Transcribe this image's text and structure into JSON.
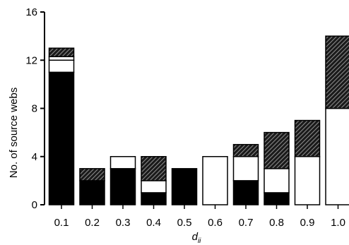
{
  "chart_data": {
    "type": "bar",
    "stacked": true,
    "categories": [
      "0.1",
      "0.2",
      "0.3",
      "0.4",
      "0.5",
      "0.6",
      "0.7",
      "0.8",
      "0.9",
      "1.0"
    ],
    "series": [
      {
        "fill": "black",
        "values": [
          11,
          2,
          3,
          1,
          3,
          0,
          2,
          1,
          0,
          0
        ]
      },
      {
        "fill": "white",
        "values": [
          1,
          0,
          1,
          1,
          0,
          4,
          2,
          2,
          4,
          8
        ]
      },
      {
        "fill": "white",
        "values": [
          0.3,
          0,
          0,
          0,
          0,
          0,
          0,
          0,
          0,
          0
        ]
      },
      {
        "fill": "hatched",
        "values": [
          0.7,
          1,
          0,
          2,
          0,
          0,
          1,
          3,
          3,
          6
        ]
      }
    ],
    "xlabel": "d",
    "xlabel_sub": "ii",
    "ylabel": "No. of source webs",
    "ylim": [
      0,
      16
    ],
    "yticks": [
      0,
      4,
      8,
      12,
      16
    ],
    "grid": false,
    "legend": "none"
  }
}
